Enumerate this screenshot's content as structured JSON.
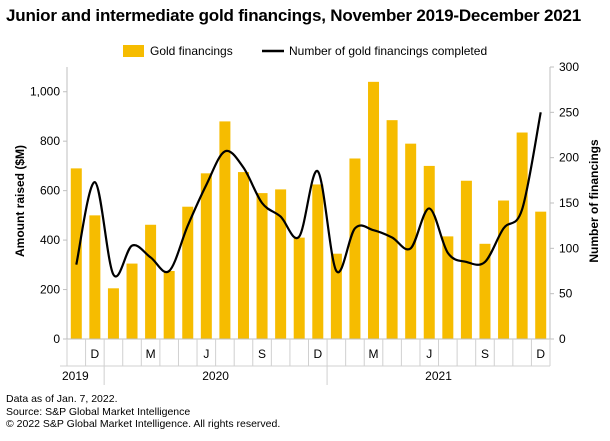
{
  "chart_data": {
    "type": "bar",
    "title": "Junior and intermediate gold financings, November 2019-December 2021",
    "categories": [
      "Nov 2019",
      "Dec 2019",
      "Jan 2020",
      "Feb 2020",
      "Mar 2020",
      "Apr 2020",
      "May 2020",
      "Jun 2020",
      "Jul 2020",
      "Aug 2020",
      "Sep 2020",
      "Oct 2020",
      "Nov 2020",
      "Dec 2020",
      "Jan 2021",
      "Feb 2021",
      "Mar 2021",
      "Apr 2021",
      "May 2021",
      "Jun 2021",
      "Jul 2021",
      "Aug 2021",
      "Sep 2021",
      "Oct 2021",
      "Nov 2021",
      "Dec 2021"
    ],
    "series": [
      {
        "name": "Gold financings",
        "type": "bar",
        "axis": "left",
        "color": "#F6BC00",
        "values": [
          690,
          500,
          205,
          305,
          462,
          275,
          535,
          670,
          880,
          675,
          590,
          605,
          410,
          625,
          345,
          730,
          1040,
          885,
          790,
          700,
          415,
          640,
          385,
          560,
          835,
          515
        ]
      },
      {
        "name": "Number of gold financings completed",
        "type": "line",
        "axis": "right",
        "color": "#000000",
        "values": [
          82,
          173,
          71,
          103,
          90,
          75,
          125,
          170,
          207,
          189,
          150,
          135,
          113,
          185,
          75,
          122,
          120,
          112,
          100,
          144,
          95,
          85,
          85,
          122,
          143,
          250
        ]
      }
    ],
    "ylabel": "Amount raised ($M)",
    "y2label": "Number of financings",
    "ylim": [
      0,
      1100
    ],
    "yticks": [
      0,
      200,
      400,
      600,
      800,
      1000
    ],
    "ytick_labels": [
      "0",
      "200",
      "400",
      "600",
      "800",
      "1,000"
    ],
    "y2lim": [
      0,
      300
    ],
    "y2ticks": [
      0,
      50,
      100,
      150,
      200,
      250,
      300
    ],
    "month_labels": [
      {
        "index": 1,
        "label": "D"
      },
      {
        "index": 4,
        "label": "M"
      },
      {
        "index": 7,
        "label": "J"
      },
      {
        "index": 10,
        "label": "S"
      },
      {
        "index": 13,
        "label": "D"
      },
      {
        "index": 16,
        "label": "M"
      },
      {
        "index": 19,
        "label": "J"
      },
      {
        "index": 22,
        "label": "S"
      },
      {
        "index": 25,
        "label": "D"
      }
    ],
    "year_groups": [
      {
        "label": "2019",
        "start": 0,
        "end": 1
      },
      {
        "label": "2020",
        "start": 2,
        "end": 13
      },
      {
        "label": "2021",
        "start": 14,
        "end": 25
      }
    ],
    "legend_position": "top"
  },
  "footnotes": {
    "line1": "Data as of Jan. 7, 2022.",
    "line2": "Source: S&P Global Market Intelligence",
    "line3": "© 2022 S&P Global Market Intelligence. All rights reserved."
  }
}
